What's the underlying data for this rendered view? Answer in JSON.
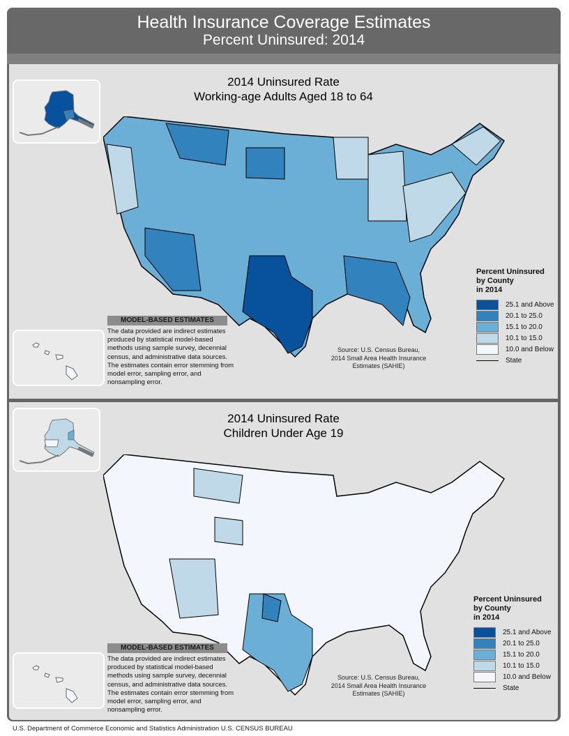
{
  "header": {
    "title": "Health Insurance Coverage Estimates",
    "subtitle": "Percent Uninsured: 2014"
  },
  "legend_colors": {
    "c25plus": "#08519c",
    "c20_25": "#3182bd",
    "c15_20": "#6baed6",
    "c10_15": "#c0d9e8",
    "c10below": "#f3f7fd"
  },
  "maps": [
    {
      "title_line1": "2014 Uninsured Rate",
      "title_line2": "Working-age Adults Aged 18 to 64",
      "dominant_category": "15.1 to 20.0"
    },
    {
      "title_line1": "2014 Uninsured Rate",
      "title_line2": "Children Under Age 19",
      "dominant_category": "10.0 and Below"
    }
  ],
  "legend": {
    "title_line1": "Percent Uninsured",
    "title_line2": "by County",
    "title_line3": "in 2014",
    "items": [
      "25.1 and Above",
      "20.1 to 25.0",
      "15.1 to 20.0",
      "10.1 to 15.0",
      "10.0 and Below"
    ],
    "state_label": "State"
  },
  "model_box": {
    "heading": "MODEL-BASED ESTIMATES",
    "lines": [
      "The data provided are indirect estimates",
      "produced by statistical model-based",
      "methods using sample survey, decennial",
      "census, and administrative data sources.",
      "The estimates contain error stemming from",
      "model error, sampling error, and",
      "nonsampling error."
    ]
  },
  "source": {
    "line1": "Source: U.S. Census Bureau,",
    "line2": "2014 Small Area Health Insurance",
    "line3": "Estimates (SAHIE)"
  },
  "footer": "U.S. Department of Commerce  Economic and Statistics Administration  U.S. CENSUS BUREAU"
}
